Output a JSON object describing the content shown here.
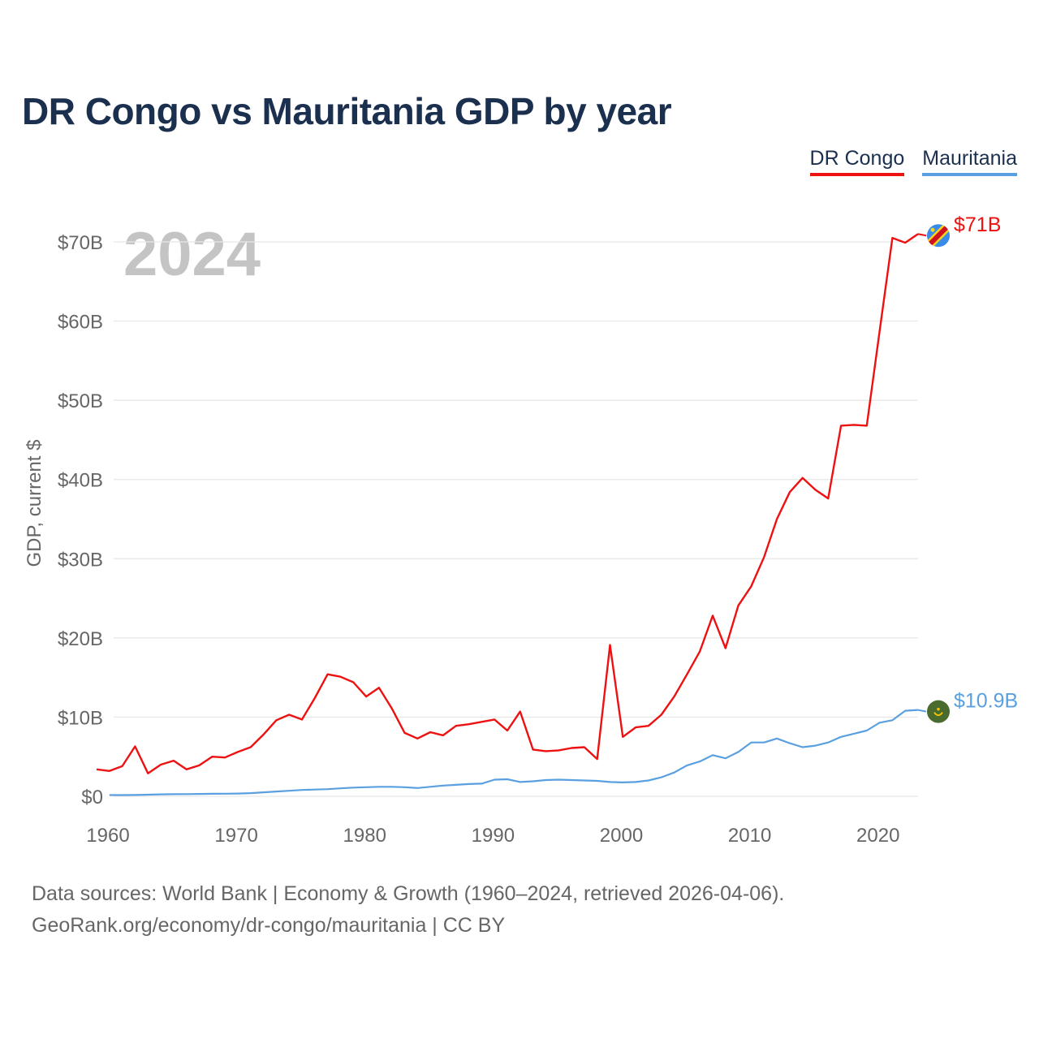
{
  "title": "DR Congo vs Mauritania GDP by year",
  "legend": [
    {
      "label": "DR Congo",
      "color": "#ee1111"
    },
    {
      "label": "Mauritania",
      "color": "#5aa0e0"
    }
  ],
  "year_watermark": "2024",
  "footer": {
    "line1": "Data sources: World Bank | Economy & Growth (1960–2024, retrieved 2026-04-06).",
    "line2": "GeoRank.org/economy/dr-congo/mauritania | CC BY"
  },
  "chart_data": {
    "type": "line",
    "title": "DR Congo vs Mauritania GDP by year",
    "xlabel": "",
    "ylabel": "GDP, current $",
    "xlim": [
      1960,
      2024
    ],
    "ylim": [
      0,
      70
    ],
    "y_unit": "billion USD",
    "y_ticks": [
      {
        "value": 0,
        "label": "$0"
      },
      {
        "value": 10,
        "label": "$10B"
      },
      {
        "value": 20,
        "label": "$20B"
      },
      {
        "value": 30,
        "label": "$30B"
      },
      {
        "value": 40,
        "label": "$40B"
      },
      {
        "value": 50,
        "label": "$50B"
      },
      {
        "value": 60,
        "label": "$60B"
      },
      {
        "value": 70,
        "label": "$70B"
      }
    ],
    "x_ticks": [
      {
        "value": 1960,
        "label": "1960"
      },
      {
        "value": 1970,
        "label": "1970"
      },
      {
        "value": 1980,
        "label": "1980"
      },
      {
        "value": 1990,
        "label": "1990"
      },
      {
        "value": 2000,
        "label": "2000"
      },
      {
        "value": 2010,
        "label": "2010"
      },
      {
        "value": 2020,
        "label": "2020"
      }
    ],
    "grid": true,
    "legend_position": "top-right",
    "series": [
      {
        "name": "DR Congo",
        "color": "#ee1111",
        "end_label": "$71B",
        "flag": "dr-congo-flag",
        "x_start": 1960,
        "values": [
          3.4,
          3.2,
          3.8,
          6.3,
          2.9,
          4.0,
          4.5,
          3.4,
          3.9,
          5.0,
          4.9,
          5.6,
          6.2,
          7.8,
          9.6,
          10.3,
          9.7,
          12.4,
          15.4,
          15.1,
          14.4,
          12.6,
          13.7,
          11.1,
          8.0,
          7.3,
          8.1,
          7.7,
          8.9,
          9.1,
          9.4,
          9.7,
          8.3,
          10.7,
          5.9,
          5.7,
          5.8,
          6.1,
          6.2,
          4.7,
          19.1,
          7.5,
          8.7,
          8.9,
          10.3,
          12.6,
          15.4,
          18.3,
          22.8,
          18.7,
          24.1,
          26.5,
          30.2,
          35.0,
          38.4,
          40.2,
          38.7,
          37.6,
          46.8,
          46.9,
          46.8,
          58.7,
          70.5,
          69.9,
          71.0
        ]
      },
      {
        "name": "Mauritania",
        "color": "#5aa0e0",
        "end_label": "$10.9B",
        "flag": "mauritania-flag",
        "x_start": 1961,
        "values": [
          0.15,
          0.15,
          0.16,
          0.2,
          0.25,
          0.27,
          0.28,
          0.3,
          0.32,
          0.33,
          0.35,
          0.4,
          0.5,
          0.6,
          0.7,
          0.8,
          0.85,
          0.9,
          1.0,
          1.1,
          1.15,
          1.2,
          1.2,
          1.15,
          1.05,
          1.2,
          1.35,
          1.45,
          1.55,
          1.6,
          2.1,
          2.15,
          1.8,
          1.9,
          2.05,
          2.1,
          2.05,
          2.0,
          1.95,
          1.8,
          1.75,
          1.8,
          2.0,
          2.4,
          3.0,
          3.9,
          4.4,
          5.2,
          4.8,
          5.6,
          6.8,
          6.8,
          7.3,
          6.7,
          6.2,
          6.4,
          6.8,
          7.5,
          7.9,
          8.3,
          9.3,
          9.6,
          10.8,
          10.9
        ]
      }
    ]
  }
}
